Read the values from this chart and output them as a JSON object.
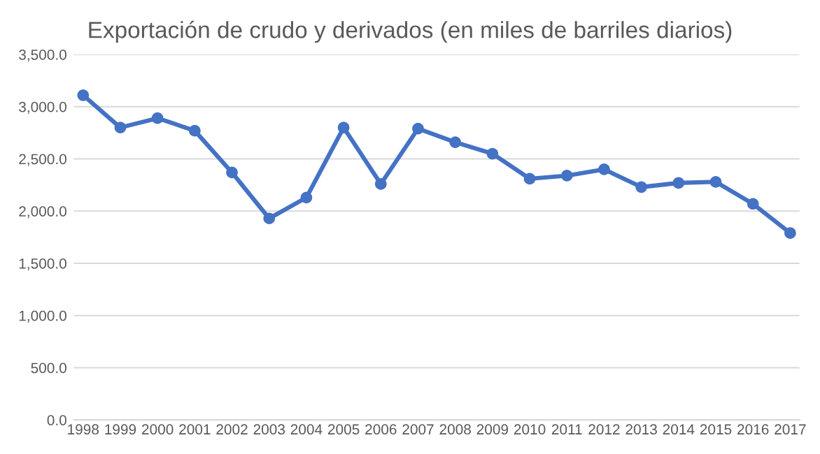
{
  "chart_data": {
    "type": "line",
    "title": "Exportación de crudo y derivados (en miles de barriles diarios)",
    "categories": [
      "1998",
      "1999",
      "2000",
      "2001",
      "2002",
      "2003",
      "2004",
      "2005",
      "2006",
      "2007",
      "2008",
      "2009",
      "2010",
      "2011",
      "2012",
      "2013",
      "2014",
      "2015",
      "2016",
      "2017"
    ],
    "series": [
      {
        "color": "#4472c4",
        "values": [
          3110,
          2800,
          2890,
          2770,
          2370,
          1930,
          2130,
          2800,
          2260,
          2790,
          2660,
          2550,
          2310,
          2340,
          2400,
          2230,
          2270,
          2280,
          2070,
          1790
        ]
      }
    ],
    "ylim": [
      0,
      3500
    ],
    "yticks": [
      {
        "value": 0,
        "label": "0.0"
      },
      {
        "value": 500,
        "label": "500.0"
      },
      {
        "value": 1000,
        "label": "1,000.0"
      },
      {
        "value": 1500,
        "label": "1,500.0"
      },
      {
        "value": 2000,
        "label": "2,000.0"
      },
      {
        "value": 2500,
        "label": "2,500.0"
      },
      {
        "value": 3000,
        "label": "3,000.0"
      },
      {
        "value": 3500,
        "label": "3,500.0"
      }
    ],
    "grid": "y",
    "marker": "circle",
    "line_style": "solid"
  }
}
